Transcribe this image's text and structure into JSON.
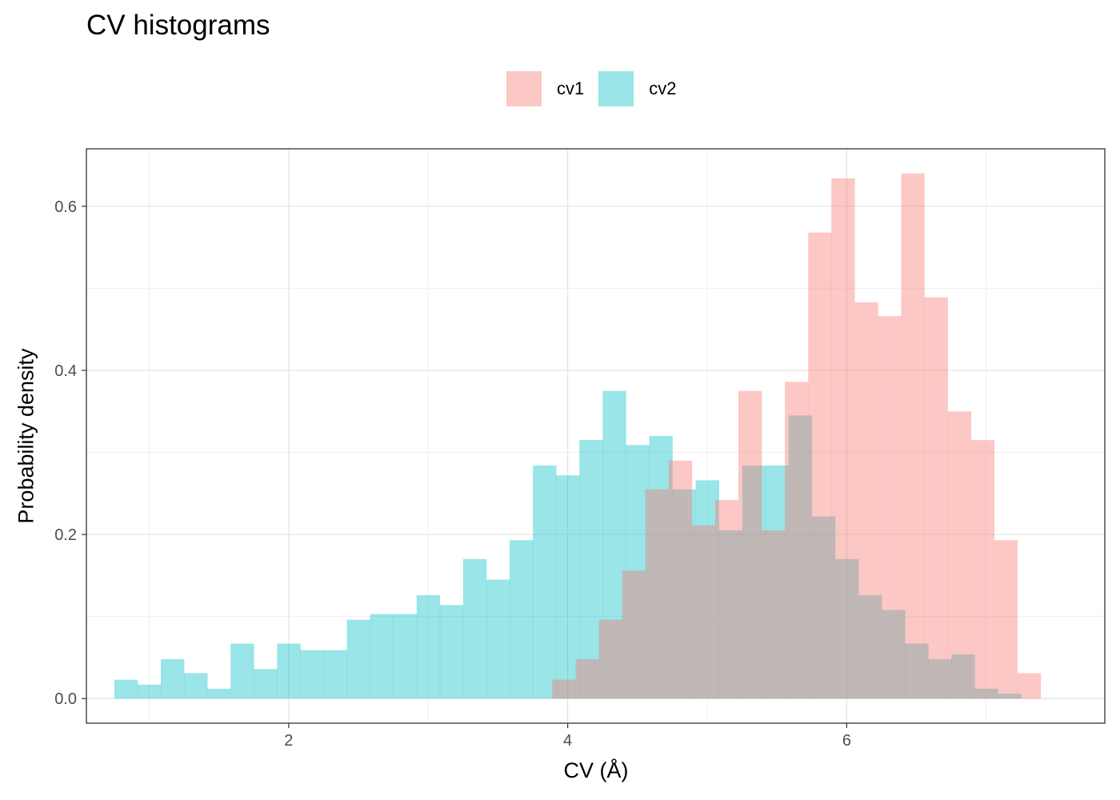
{
  "chart_data": {
    "type": "histogram",
    "title": "CV histograms",
    "xlabel": "CV (Å)",
    "ylabel": "Probability density",
    "xlim": [
      0.55,
      7.85
    ],
    "ylim": [
      -0.03,
      0.67
    ],
    "x_ticks": [
      {
        "value": 2,
        "label": "2"
      },
      {
        "value": 4,
        "label": "4"
      },
      {
        "value": 6,
        "label": "6"
      }
    ],
    "y_ticks": [
      {
        "value": 0.0,
        "label": "0.0"
      },
      {
        "value": 0.2,
        "label": "0.2"
      },
      {
        "value": 0.4,
        "label": "0.4"
      },
      {
        "value": 0.6,
        "label": "0.6"
      }
    ],
    "grid": true,
    "legend_position": "top",
    "series": [
      {
        "name": "cv2",
        "color": "#00BFC4",
        "bins_start": 0.75,
        "bin_width": 0.1667,
        "values": [
          0.023,
          0.017,
          0.048,
          0.031,
          0.012,
          0.067,
          0.036,
          0.067,
          0.059,
          0.059,
          0.096,
          0.103,
          0.103,
          0.126,
          0.114,
          0.17,
          0.145,
          0.193,
          0.284,
          0.272,
          0.315,
          0.375,
          0.309,
          0.32,
          0.255,
          0.266,
          0.205,
          0.284,
          0.284,
          0.345,
          0.222,
          0.17,
          0.126,
          0.108,
          0.067,
          0.048,
          0.054,
          0.012,
          0.006
        ]
      },
      {
        "name": "cv1",
        "color": "#F8766D",
        "bins_start": 3.89,
        "bin_width": 0.1667,
        "values": [
          0.023,
          0.048,
          0.096,
          0.156,
          0.255,
          0.29,
          0.211,
          0.242,
          0.375,
          0.205,
          0.386,
          0.568,
          0.634,
          0.483,
          0.466,
          0.64,
          0.489,
          0.35,
          0.315,
          0.193,
          0.031
        ]
      }
    ]
  }
}
